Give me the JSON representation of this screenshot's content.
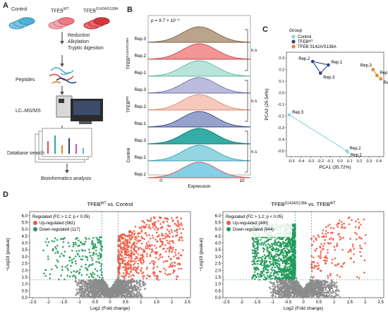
{
  "panels": {
    "a": "A",
    "b": "B",
    "c": "C",
    "d": "D"
  },
  "workflow": {
    "groups": [
      "Control",
      "TFEB",
      "TFEB"
    ],
    "group_sups": [
      "",
      "WT",
      "S142A/S138A"
    ],
    "group_colors": [
      "#4fb3d9",
      "#ef7b86",
      "#d9363b"
    ],
    "steps": [
      "Reduction",
      "Alkylation",
      "Tryptic digestion"
    ],
    "peptides": "Peptides",
    "lcms": "LC–MS/MS",
    "db": "Database search",
    "bio": "Bioinformatics analysis"
  },
  "ridge": {
    "pvalue": "p = 9.7 × 10⁻⁵",
    "xlabel": "Expression",
    "xticks": [
      "0",
      "10"
    ],
    "rows": [
      {
        "label": "Rep.3",
        "fill": "#b79f86",
        "line": "#7a6048"
      },
      {
        "label": "Rep.2",
        "fill": "#f08f8f",
        "line": "#c94b4b"
      },
      {
        "label": "Rep.1",
        "fill": "#b5e3d8",
        "line": "#5fb7a2"
      },
      {
        "label": "Rep.3",
        "fill": "#b8b9dc",
        "line": "#6d6fa8"
      },
      {
        "label": "Rep.2",
        "fill": "#f7c6b8",
        "line": "#d98c77"
      },
      {
        "label": "Rep.1",
        "fill": "#8e9dc9",
        "line": "#3b4a80"
      },
      {
        "label": "Rep.3",
        "fill": "#2aa8a0",
        "line": "#0e7a72"
      },
      {
        "label": "Rep.2",
        "fill": "#8fd3e0",
        "line": "#3e9fb4"
      },
      {
        "label": "Rep.1",
        "fill": "#7ccfe6",
        "line": "#e24c4c"
      }
    ],
    "groups": [
      {
        "name": "TFEB",
        "sup": "S142A/S138A"
      },
      {
        "name": "TFEB",
        "sup": "WT"
      },
      {
        "name": "Control",
        "sup": ""
      }
    ],
    "ns": [
      "n.s",
      "n.s",
      "n.s"
    ]
  },
  "chart_data": [
    {
      "type": "scatter",
      "title": "",
      "xlabel": "PCA1 (35.72%)",
      "ylabel": "PCA2 (25.54%)",
      "xlim": [
        -0.55,
        0.45
      ],
      "ylim": [
        -0.55,
        0.35
      ],
      "xticks": [
        "-0.5",
        "-0.4",
        "-0.3",
        "-0.2",
        "-0.1",
        "0.0",
        "0.1",
        "0.2",
        "0.3",
        "0.4"
      ],
      "yticks": [
        "0.3",
        "0.2",
        "0.1",
        "0.0",
        "-0.1",
        "-0.2",
        "-0.3",
        "-0.4",
        "-0.5"
      ],
      "legend_title": "Group",
      "series": [
        {
          "name": "Control",
          "color": "#8fd3d6",
          "points": [
            {
              "label": "Rep.1",
              "x": 0.08,
              "y": -0.51
            },
            {
              "label": "Rep.2",
              "x": 0.07,
              "y": -0.5
            },
            {
              "label": "Rep.3",
              "x": -0.52,
              "y": -0.19
            }
          ]
        },
        {
          "name": "TFEBᵂᵀ",
          "color": "#2c3f86",
          "points": [
            {
              "label": "Rep.1",
              "x": -0.12,
              "y": 0.24
            },
            {
              "label": "Rep.2",
              "x": -0.28,
              "y": 0.27
            },
            {
              "label": "Rep.3",
              "x": -0.2,
              "y": 0.17
            }
          ]
        },
        {
          "name": "TFEB S142A/S138A",
          "color": "#e08a2a",
          "points": [
            {
              "label": "Rep.1",
              "x": 0.42,
              "y": 0.12
            },
            {
              "label": "Rep.2",
              "x": 0.38,
              "y": 0.15
            },
            {
              "label": "Rep.3",
              "x": 0.34,
              "y": 0.2
            }
          ]
        }
      ]
    },
    {
      "type": "scatter",
      "title": "TFEB WT vs. Control",
      "xlabel": "Log2 (Fold change)",
      "ylabel": "−Log10 (pvalue)",
      "xlim": [
        -2.6,
        2.6
      ],
      "ylim": [
        0,
        6.3
      ],
      "xticks": [
        "-2.5",
        "-2",
        "-1.5",
        "-1",
        "-0.5",
        "0",
        "0.5",
        "1",
        "1.5",
        "2",
        "2.5"
      ],
      "yticks": [
        "6.0",
        "5.5",
        "5.0",
        "4.5",
        "4.0",
        "3.5",
        "3.0",
        "2.5",
        "2.0",
        "1.5",
        "1.0",
        "0.5",
        "0.0"
      ],
      "legend_title": "Regulated (FC > 1.2; p < 0.05)",
      "series": [
        {
          "name": "Up-regulated (962)",
          "color": "#ef5a43"
        },
        {
          "name": "Down-regulated (117)",
          "color": "#1f9a58"
        }
      ],
      "up_count": 962,
      "down_count": 117
    },
    {
      "type": "scatter",
      "title": "TFEB S142A/S138A vs. TFEB WT",
      "xlabel": "Log2 (Fold change)",
      "ylabel": "−Log10 (pvalue)",
      "xlim": [
        -2.6,
        2.6
      ],
      "ylim": [
        0,
        6.3
      ],
      "xticks": [
        "-2.5",
        "-2",
        "-1.5",
        "-1",
        "-0.5",
        "0",
        "0.5",
        "1",
        "1.5",
        "2",
        "2.5"
      ],
      "yticks": [
        "6.0",
        "5.5",
        "5.0",
        "4.5",
        "4.0",
        "3.5",
        "3.0",
        "2.5",
        "2.0",
        "1.5",
        "1.0",
        "0.5",
        "0.0"
      ],
      "legend_title": "Regulated (FC > 1.2; p < 0.05)",
      "series": [
        {
          "name": "Up-regulated (480)",
          "color": "#ef5a43"
        },
        {
          "name": "Down-regulated (944)",
          "color": "#1f9a58"
        }
      ],
      "up_count": 480,
      "down_count": 944
    }
  ]
}
